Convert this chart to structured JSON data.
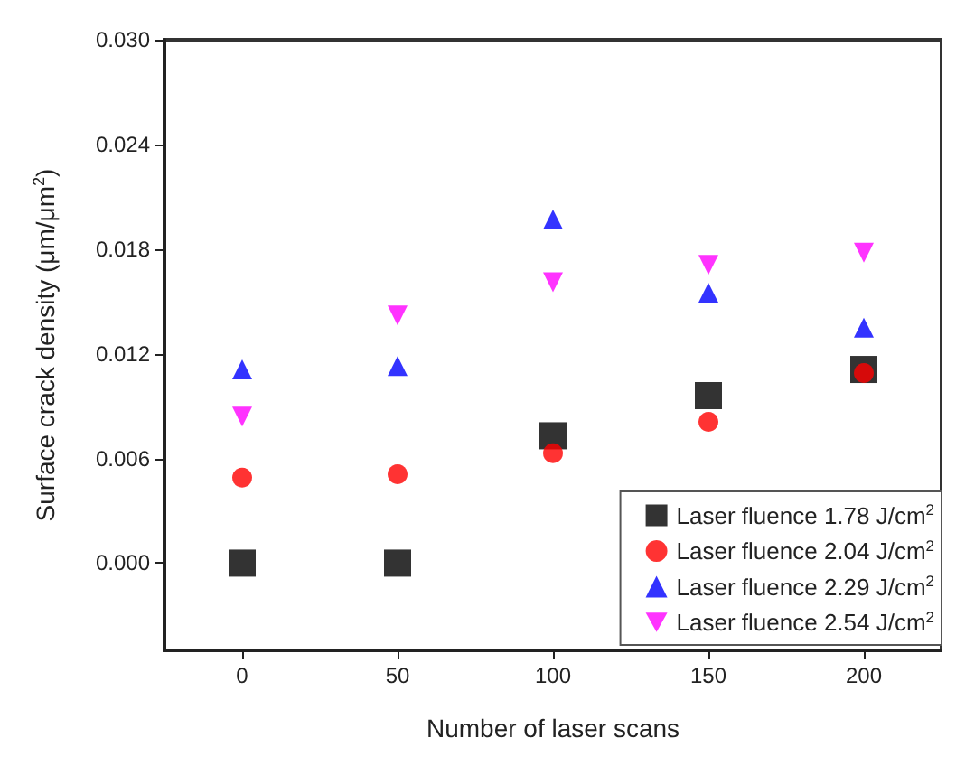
{
  "chart_data": {
    "type": "scatter",
    "xlabel": "Number of laser scans",
    "ylabel": "Surface crack density (μm/μm$^{2}$)",
    "x": [
      0,
      50,
      100,
      150,
      200
    ],
    "series": [
      {
        "name": "Laser fluence 1.78 J/cm$^{2}$",
        "color": "#000000",
        "marker": "square",
        "values": [
          0,
          0,
          0.0073,
          0.0096,
          0.0111
        ]
      },
      {
        "name": "Laser fluence 2.04 J/cm$^{2}$",
        "color": "#ff0000",
        "marker": "circle",
        "values": [
          0.0049,
          0.0051,
          0.0063,
          0.0081,
          0.0109
        ]
      },
      {
        "name": "Laser fluence 2.29 J/cm$^{2}$",
        "color": "#0000ff",
        "marker": "triangle",
        "values": [
          0.0111,
          0.0113,
          0.0197,
          0.0155,
          0.0135
        ]
      },
      {
        "name": "Laser fluence 2.54 J/cm$^{2}$",
        "color": "#ff00ff",
        "marker": "triangle-down",
        "values": [
          0.0084,
          0.0142,
          0.0161,
          0.0171,
          0.0178
        ]
      }
    ],
    "xlim": [
      -25,
      225
    ],
    "xticks": [
      0,
      50,
      100,
      150,
      200
    ],
    "ylim": [
      -0.005,
      0.03
    ],
    "yticks": [
      {
        "value": 0,
        "label": "0.000"
      },
      {
        "value": 0.006,
        "label": "0.006"
      },
      {
        "value": 0.012,
        "label": "0.012"
      },
      {
        "value": 0.018,
        "label": "0.018"
      },
      {
        "value": 0.024,
        "label": "0.024"
      },
      {
        "value": 0.03,
        "label": "0.030"
      }
    ],
    "grid": false,
    "legend": "bottom right"
  }
}
